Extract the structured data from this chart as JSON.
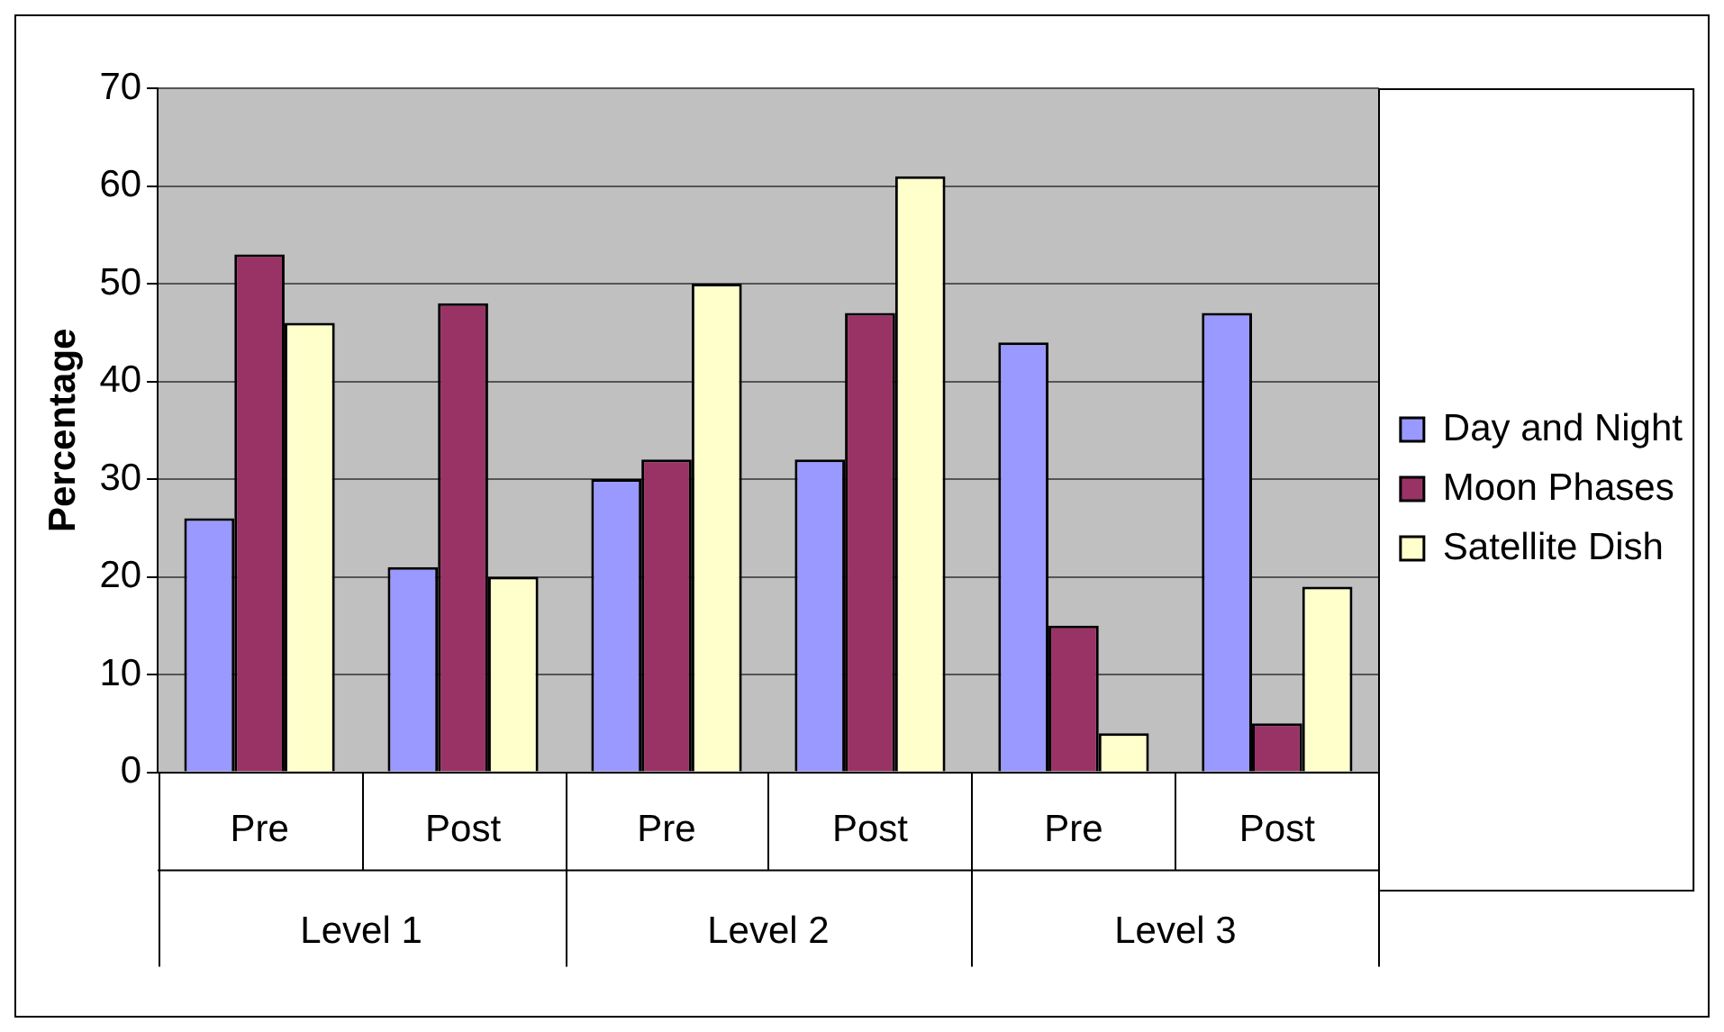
{
  "chart_data": {
    "type": "bar",
    "ylabel": "Percentage",
    "categories": [
      "Pre",
      "Post",
      "Pre",
      "Post",
      "Pre",
      "Post"
    ],
    "series": [
      {
        "name": "Day and Night",
        "color": "#9999ff",
        "values": [
          26,
          21,
          30,
          32,
          44,
          47
        ]
      },
      {
        "name": "Moon Phases",
        "color": "#993366",
        "values": [
          53,
          48,
          32,
          47,
          15,
          5
        ]
      },
      {
        "name": "Satellite Dish",
        "color": "#ffffcc",
        "values": [
          46,
          20,
          50,
          61,
          4,
          19
        ]
      }
    ],
    "annotations": [
      "Level 1",
      "Level 2",
      "Level 3"
    ],
    "ylim": [
      0,
      70
    ],
    "yticks": [
      0,
      10,
      20,
      30,
      40,
      50,
      60,
      70
    ],
    "grid": "y",
    "legend": "right"
  }
}
